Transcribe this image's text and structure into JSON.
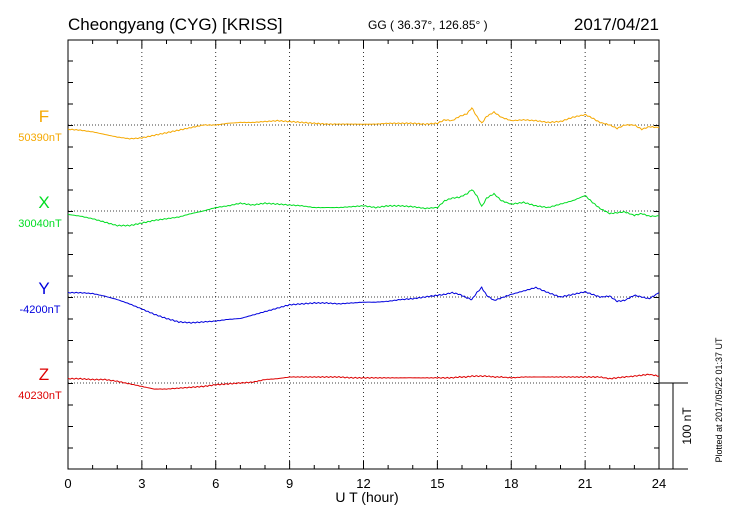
{
  "header": {
    "station": "Cheongyang (CYG)  [KRISS]",
    "coords": "GG ( 36.37°, 126.85° )",
    "date": "2017/04/21"
  },
  "side_note": "Plotted at 2017/05/22 01:37 UT",
  "chart_data": {
    "type": "line",
    "xlabel": "U T (hour)",
    "xlim": [
      0,
      24
    ],
    "x_ticks": [
      "0",
      "3",
      "6",
      "9",
      "12",
      "15",
      "18",
      "21",
      "24"
    ],
    "scale_bar": {
      "label": "100 nT",
      "value_nT": 100
    },
    "colors": {
      "F": "#f5a800",
      "X": "#00dd22",
      "Y": "#0000dd",
      "Z": "#dd0000"
    },
    "series": [
      {
        "name": "F",
        "baseline": "50390nT",
        "baseline_nT": 50390,
        "x": [
          0,
          0.5,
          1,
          1.5,
          2,
          2.5,
          3,
          3.5,
          4,
          4.5,
          5,
          5.5,
          6,
          6.5,
          7,
          7.5,
          8,
          8.5,
          9,
          9.5,
          10,
          10.5,
          11,
          11.5,
          12,
          12.5,
          13,
          13.5,
          14,
          14.5,
          15,
          15.3,
          15.6,
          15.9,
          16.2,
          16.4,
          16.6,
          16.8,
          17.0,
          17.3,
          17.6,
          18,
          18.5,
          19,
          19.5,
          20,
          20.5,
          21,
          21.3,
          21.6,
          22,
          22.3,
          22.6,
          23,
          23.3,
          23.6,
          24
        ],
        "values": [
          -5,
          -6,
          -8,
          -11,
          -14,
          -16,
          -15,
          -12,
          -9,
          -6,
          -3,
          0,
          0,
          2,
          3,
          3,
          4,
          5,
          4,
          3,
          2,
          1,
          1,
          1,
          1,
          1,
          2,
          2,
          2,
          1,
          2,
          6,
          5,
          10,
          13,
          20,
          10,
          2,
          10,
          15,
          9,
          5,
          6,
          5,
          3,
          4,
          9,
          12,
          8,
          3,
          0,
          -4,
          0,
          0,
          -5,
          -2,
          -3
        ]
      },
      {
        "name": "X",
        "baseline": "30040nT",
        "baseline_nT": 30040,
        "x": [
          0,
          0.5,
          1,
          1.5,
          2,
          2.5,
          3,
          3.5,
          4,
          4.5,
          5,
          5.5,
          6,
          6.5,
          7,
          7.5,
          8,
          8.5,
          9,
          9.5,
          10,
          10.5,
          11,
          11.5,
          12,
          12.5,
          13,
          13.5,
          14,
          14.5,
          15,
          15.3,
          15.6,
          15.9,
          16.2,
          16.4,
          16.6,
          16.8,
          17.0,
          17.3,
          17.6,
          18,
          18.5,
          19,
          19.5,
          20,
          20.5,
          21,
          21.3,
          21.6,
          22,
          22.3,
          22.6,
          23,
          23.3,
          23.6,
          24
        ],
        "values": [
          -4,
          -6,
          -9,
          -13,
          -17,
          -17,
          -14,
          -11,
          -9,
          -7,
          -3,
          0,
          4,
          6,
          9,
          7,
          9,
          8,
          7,
          6,
          4,
          4,
          4,
          5,
          6,
          4,
          6,
          6,
          5,
          3,
          4,
          12,
          15,
          16,
          20,
          25,
          18,
          5,
          15,
          20,
          12,
          8,
          10,
          6,
          4,
          8,
          12,
          18,
          10,
          3,
          -3,
          -2,
          -1,
          -5,
          -3,
          -6,
          -6
        ]
      },
      {
        "name": "Y",
        "baseline": "-4200nT",
        "baseline_nT": -4200,
        "x": [
          0,
          0.5,
          1,
          1.5,
          2,
          2.5,
          3,
          3.5,
          4,
          4.5,
          5,
          5.5,
          6,
          6.5,
          7,
          7.5,
          8,
          8.5,
          9,
          9.5,
          10,
          10.5,
          11,
          11.5,
          12,
          12.5,
          13,
          13.5,
          14,
          14.5,
          15,
          15.3,
          15.6,
          15.9,
          16.2,
          16.4,
          16.6,
          16.8,
          17.0,
          17.3,
          17.6,
          18,
          18.5,
          19,
          19.5,
          20,
          20.5,
          21,
          21.3,
          21.6,
          22,
          22.3,
          22.6,
          23,
          23.3,
          23.6,
          24
        ],
        "values": [
          5,
          5,
          4,
          1,
          -3,
          -8,
          -14,
          -20,
          -25,
          -29,
          -30,
          -29,
          -28,
          -26,
          -25,
          -21,
          -17,
          -13,
          -9,
          -8,
          -7,
          -7,
          -8,
          -7,
          -6,
          -6,
          -5,
          -3,
          -2,
          0,
          2,
          3,
          5,
          3,
          -1,
          -3,
          5,
          11,
          2,
          -4,
          -1,
          3,
          7,
          11,
          5,
          0,
          3,
          6,
          3,
          0,
          1,
          -5,
          -4,
          2,
          0,
          -2,
          5
        ]
      },
      {
        "name": "Z",
        "baseline": "40230nT",
        "baseline_nT": 40230,
        "x": [
          0,
          0.5,
          1,
          1.5,
          2,
          2.5,
          3,
          3.5,
          4,
          4.5,
          5,
          5.5,
          6,
          6.5,
          7,
          7.5,
          8,
          8.5,
          9,
          9.5,
          10,
          10.5,
          11,
          11.5,
          12,
          12.5,
          13,
          13.5,
          14,
          14.5,
          15,
          15.3,
          15.6,
          15.9,
          16.2,
          16.4,
          16.6,
          16.8,
          17.0,
          17.3,
          17.6,
          18,
          18.5,
          19,
          19.5,
          20,
          20.5,
          21,
          21.3,
          21.6,
          22,
          22.3,
          22.6,
          23,
          23.3,
          23.6,
          24
        ],
        "values": [
          5,
          5,
          4,
          4,
          2,
          -1,
          -4,
          -7,
          -7,
          -6,
          -5,
          -4,
          -2,
          -1,
          0,
          1,
          4,
          5,
          7,
          7,
          7,
          7,
          7,
          6,
          6,
          6,
          6,
          6,
          6,
          6,
          6,
          6,
          6,
          7,
          7,
          8,
          8,
          8,
          8,
          7,
          7,
          6,
          7,
          7,
          7,
          7,
          7,
          7,
          7,
          7,
          5,
          6,
          7,
          8,
          9,
          10,
          8
        ]
      }
    ]
  }
}
